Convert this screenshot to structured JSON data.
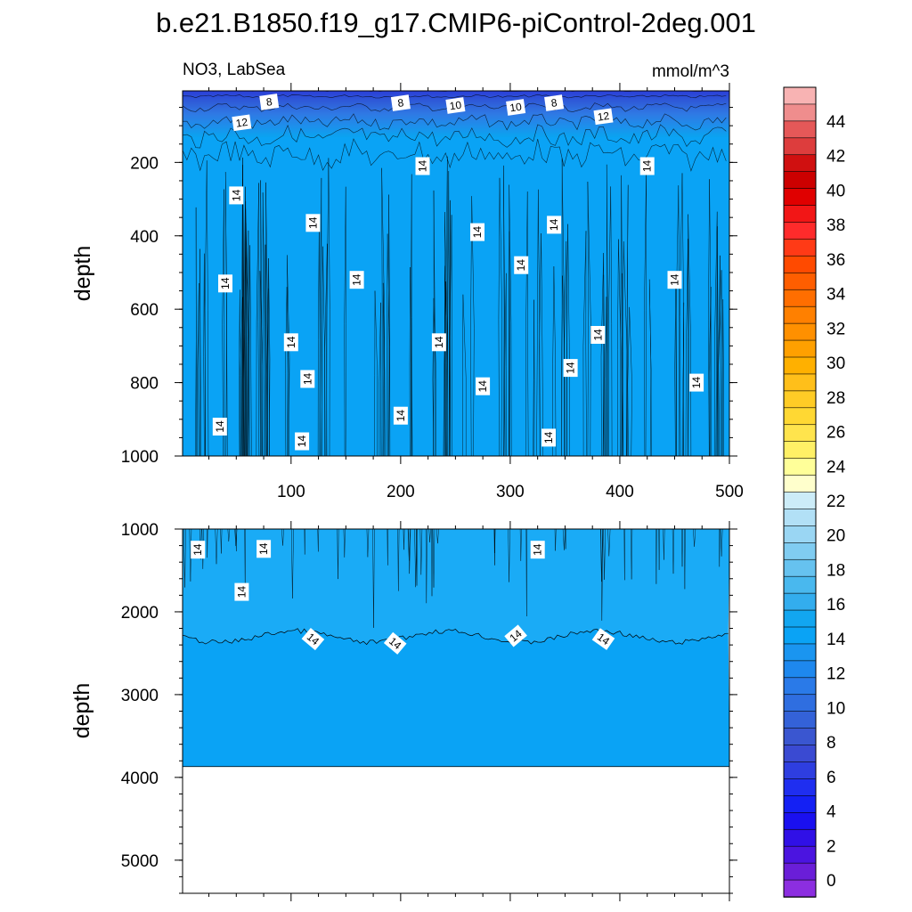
{
  "title": "b.e21.B1850.f19_g17.CMIP6-piControl-2deg.001",
  "chart_data": [
    {
      "type": "contour",
      "panel": "upper",
      "variable_label": "NO3, LabSea",
      "units": "mmol/m^3",
      "ylabel": "depth",
      "xlabel": "",
      "xlim": [
        1,
        500
      ],
      "ylim": [
        1000,
        5
      ],
      "xticks": [
        100,
        200,
        300,
        400,
        500
      ],
      "yticks": [
        200,
        400,
        600,
        800,
        1000
      ],
      "contour_interval": 1,
      "surface_layers": [
        {
          "depth": 5,
          "value": 7
        },
        {
          "depth": 20,
          "value": 8
        },
        {
          "depth": 50,
          "value": 10
        },
        {
          "depth": 90,
          "value": 12
        },
        {
          "depth": 130,
          "value": 13
        },
        {
          "depth": 180,
          "value": 14
        }
      ],
      "deep_value": 14,
      "line_labels": [
        {
          "x": 80,
          "d": 35,
          "text": "8"
        },
        {
          "x": 200,
          "d": 38,
          "text": "8"
        },
        {
          "x": 250,
          "d": 45,
          "text": "10"
        },
        {
          "x": 305,
          "d": 50,
          "text": "10"
        },
        {
          "x": 340,
          "d": 38,
          "text": "8"
        },
        {
          "x": 55,
          "d": 92,
          "text": "12"
        },
        {
          "x": 385,
          "d": 75,
          "text": "12"
        },
        {
          "x": 220,
          "d": 210,
          "text": "14"
        },
        {
          "x": 425,
          "d": 210,
          "text": "14"
        },
        {
          "x": 50,
          "d": 290,
          "text": "14"
        },
        {
          "x": 120,
          "d": 365,
          "text": "14"
        },
        {
          "x": 270,
          "d": 390,
          "text": "14"
        },
        {
          "x": 340,
          "d": 370,
          "text": "14"
        },
        {
          "x": 40,
          "d": 530,
          "text": "14"
        },
        {
          "x": 160,
          "d": 520,
          "text": "14"
        },
        {
          "x": 310,
          "d": 480,
          "text": "14"
        },
        {
          "x": 450,
          "d": 520,
          "text": "14"
        },
        {
          "x": 100,
          "d": 690,
          "text": "14"
        },
        {
          "x": 235,
          "d": 690,
          "text": "14"
        },
        {
          "x": 380,
          "d": 670,
          "text": "14"
        },
        {
          "x": 115,
          "d": 790,
          "text": "14"
        },
        {
          "x": 275,
          "d": 810,
          "text": "14"
        },
        {
          "x": 355,
          "d": 760,
          "text": "14"
        },
        {
          "x": 470,
          "d": 800,
          "text": "14"
        },
        {
          "x": 35,
          "d": 920,
          "text": "14"
        },
        {
          "x": 200,
          "d": 890,
          "text": "14"
        },
        {
          "x": 110,
          "d": 960,
          "text": "14"
        },
        {
          "x": 335,
          "d": 950,
          "text": "14"
        }
      ]
    },
    {
      "type": "contour",
      "panel": "lower",
      "ylabel": "depth",
      "xlabel": "",
      "xlim": [
        1,
        500
      ],
      "ylim": [
        5400,
        1000
      ],
      "xticks": [
        100,
        200,
        300,
        400,
        500
      ],
      "yticks": [
        1000,
        2000,
        3000,
        4000,
        5000
      ],
      "upper_value": 14.5,
      "lower_value": 14,
      "boundary_14_depth": 2300,
      "missing_below_depth": 3870,
      "line_labels": [
        {
          "x": 15,
          "d": 1250,
          "text": "14"
        },
        {
          "x": 75,
          "d": 1240,
          "text": "14"
        },
        {
          "x": 55,
          "d": 1760,
          "text": "14"
        },
        {
          "x": 325,
          "d": 1250,
          "text": "14"
        },
        {
          "x": 120,
          "d": 2330,
          "text": "14"
        },
        {
          "x": 195,
          "d": 2380,
          "text": "14"
        },
        {
          "x": 305,
          "d": 2290,
          "text": "14"
        },
        {
          "x": 385,
          "d": 2330,
          "text": "14"
        }
      ]
    }
  ],
  "colorbar": {
    "labels": [
      "44",
      "42",
      "40",
      "38",
      "36",
      "34",
      "32",
      "30",
      "28",
      "26",
      "24",
      "22",
      "20",
      "18",
      "16",
      "14",
      "12",
      "10",
      "8",
      "6",
      "4",
      "2",
      "0"
    ],
    "colors": [
      "#f8b3b3",
      "#ef8d8d",
      "#e55858",
      "#dd3d3d",
      "#d01010",
      "#cc0000",
      "#e00000",
      "#f21616",
      "#ff2b2b",
      "#ff3a16",
      "#ff4a00",
      "#ff5e00",
      "#ff6e00",
      "#ff8000",
      "#ff9000",
      "#ffa000",
      "#ffb000",
      "#ffbf1a",
      "#ffcc26",
      "#ffd833",
      "#ffe44d",
      "#fff066",
      "#ffff99",
      "#ffffcc",
      "#ccecf8",
      "#b2e0f6",
      "#9ad6f3",
      "#80ccf1",
      "#66c2ef",
      "#49b8ee",
      "#33adee",
      "#12a6f0",
      "#0aa3f5",
      "#1a95f0",
      "#1e88ee",
      "#2a7ae8",
      "#2f6ee0",
      "#3462d8",
      "#3a56d0",
      "#3a4ad2",
      "#2e3ee0",
      "#1f2ef0",
      "#1420f4",
      "#1a10f0",
      "#3010e6",
      "#4b14e0",
      "#6a1ed8",
      "#8c2ee0"
    ]
  }
}
